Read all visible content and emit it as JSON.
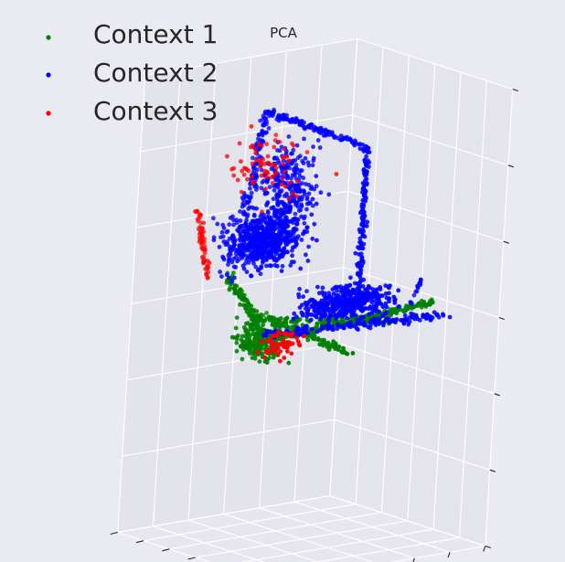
{
  "chart_data": {
    "type": "scatter",
    "projection": "3d",
    "title": "PCA",
    "xlabel": "",
    "ylabel": "",
    "zlabel": "",
    "grid": true,
    "legend_position": "top-left",
    "series": [
      {
        "name": "Context 1",
        "color": "#008000",
        "structures": [
          {
            "shape": "line",
            "from": [
              0.05,
              0.35,
              0.0
            ],
            "to": [
              0.95,
              0.35,
              0.05
            ],
            "n": 240,
            "spread": 0.02
          },
          {
            "shape": "line",
            "from": [
              0.3,
              0.0,
              0.0
            ],
            "to": [
              0.3,
              0.55,
              0.05
            ],
            "n": 110,
            "spread": 0.02
          },
          {
            "shape": "line",
            "from": [
              0.0,
              0.4,
              0.3
            ],
            "to": [
              0.0,
              0.2,
              0.15
            ],
            "n": 90,
            "spread": 0.03
          },
          {
            "shape": "line",
            "from": [
              0.0,
              0.2,
              0.15
            ],
            "to": [
              0.55,
              0.05,
              0.1
            ],
            "n": 90,
            "spread": 0.03
          },
          {
            "shape": "cloud",
            "center": [
              0.05,
              0.25,
              0.05
            ],
            "size": [
              0.12,
              0.15,
              0.12
            ],
            "n": 220
          }
        ]
      },
      {
        "name": "Context 2",
        "color": "#0000ff",
        "structures": [
          {
            "shape": "line",
            "from": [
              0.25,
              0.55,
              0.95
            ],
            "to": [
              0.55,
              0.3,
              0.8
            ],
            "n": 130,
            "spread": 0.02
          },
          {
            "shape": "line",
            "from": [
              0.55,
              0.3,
              0.8
            ],
            "to": [
              0.55,
              0.3,
              0.1
            ],
            "n": 150,
            "spread": 0.02
          },
          {
            "shape": "line",
            "from": [
              0.25,
              0.55,
              0.95
            ],
            "to": [
              0.1,
              0.45,
              0.55
            ],
            "n": 90,
            "spread": 0.03
          },
          {
            "shape": "cloud",
            "center": [
              0.15,
              0.4,
              0.45
            ],
            "size": [
              0.25,
              0.15,
              0.2
            ],
            "n": 650
          },
          {
            "shape": "cloud",
            "center": [
              0.3,
              0.45,
              0.65
            ],
            "size": [
              0.18,
              0.12,
              0.25
            ],
            "n": 260
          },
          {
            "shape": "line",
            "from": [
              0.1,
              0.3,
              0.05
            ],
            "to": [
              1.0,
              0.3,
              0.0
            ],
            "n": 160,
            "spread": 0.03
          },
          {
            "shape": "cloud",
            "center": [
              0.45,
              0.25,
              0.15
            ],
            "size": [
              0.28,
              0.14,
              0.1
            ],
            "n": 420
          },
          {
            "shape": "line",
            "from": [
              0.95,
              0.5,
              0.0
            ],
            "to": [
              1.0,
              0.5,
              0.12
            ],
            "n": 16,
            "spread": 0.01
          }
        ]
      },
      {
        "name": "Context 3",
        "color": "#ff0000",
        "structures": [
          {
            "shape": "line",
            "from": [
              0.02,
              0.65,
              0.55
            ],
            "to": [
              0.02,
              0.55,
              0.25
            ],
            "n": 60,
            "spread": 0.02
          },
          {
            "shape": "cloud",
            "center": [
              0.25,
              0.55,
              0.7
            ],
            "size": [
              0.3,
              0.15,
              0.22
            ],
            "n": 75
          },
          {
            "shape": "cloud",
            "center": [
              0.08,
              0.15,
              0.05
            ],
            "size": [
              0.12,
              0.1,
              0.08
            ],
            "n": 55
          }
        ]
      }
    ]
  }
}
